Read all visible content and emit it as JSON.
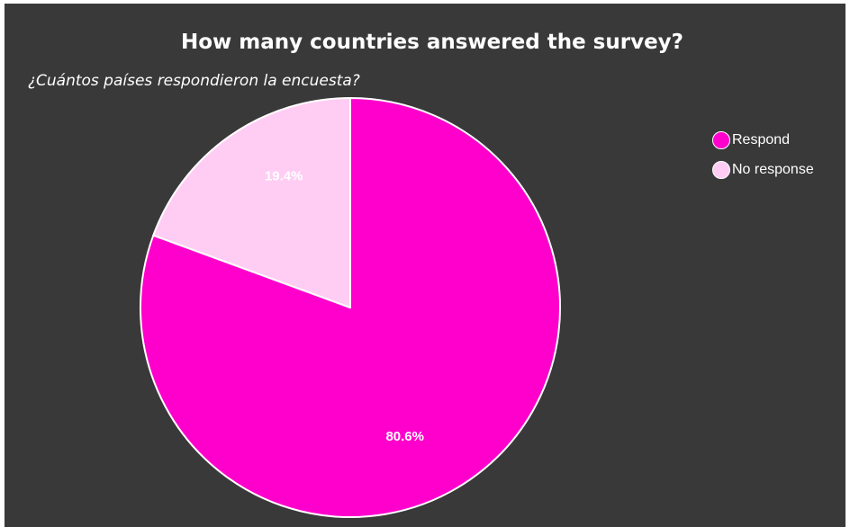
{
  "chart_data": {
    "type": "pie",
    "title": "How many countries answered the survey?",
    "subtitle": "¿Cuántos países respondieron la encuesta?",
    "slices": [
      {
        "label": "Respond",
        "value": 80.6,
        "display": "80.6%",
        "color": "#ff00cc"
      },
      {
        "label": "No response",
        "value": 19.4,
        "display": "19.4%",
        "color": "#ffcdf4"
      }
    ],
    "legend_position": "top-right",
    "background": "#393939"
  }
}
